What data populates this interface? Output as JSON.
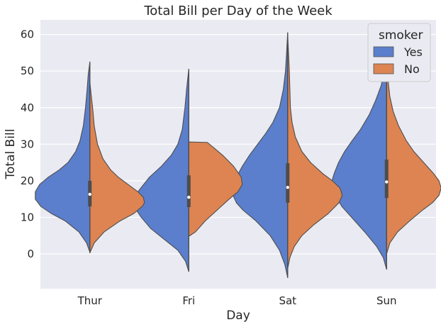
{
  "chart_data": {
    "type": "violin",
    "title": "Total Bill per Day of the Week",
    "xlabel": "Day",
    "ylabel": "Total Bill",
    "ylim": [
      -9.5,
      64
    ],
    "yticks": [
      0,
      10,
      20,
      30,
      40,
      50,
      60
    ],
    "categories": [
      "Thur",
      "Fri",
      "Sat",
      "Sun"
    ],
    "grid": true,
    "legend": {
      "title": "smoker",
      "placement": "top-right",
      "entries": [
        {
          "label": "Yes",
          "color": "#5b7fcc"
        },
        {
          "label": "No",
          "color": "#dd8452"
        }
      ]
    },
    "series": [
      {
        "name": "Yes",
        "side": "left",
        "color": "#5b7fcc",
        "groups": [
          {
            "category": "Thur",
            "quartiles": [
              13,
              16.3,
              20
            ],
            "profile": [
              [
                0.5,
                0
              ],
              [
                3,
                0.06
              ],
              [
                6,
                0.2
              ],
              [
                9,
                0.45
              ],
              [
                11,
                0.7
              ],
              [
                13,
                0.9
              ],
              [
                15,
                1
              ],
              [
                17,
                1
              ],
              [
                19,
                0.92
              ],
              [
                21,
                0.76
              ],
              [
                23,
                0.56
              ],
              [
                25,
                0.4
              ],
              [
                28,
                0.26
              ],
              [
                31,
                0.18
              ],
              [
                35,
                0.12
              ],
              [
                40,
                0.08
              ],
              [
                45,
                0.05
              ],
              [
                49,
                0.03
              ],
              [
                52.5,
                0
              ]
            ]
          },
          {
            "category": "Fri",
            "quartiles": [
              12.8,
              15.5,
              21.5
            ],
            "profile": [
              [
                -4.8,
                0
              ],
              [
                -2,
                0.06
              ],
              [
                1,
                0.2
              ],
              [
                4,
                0.45
              ],
              [
                7,
                0.7
              ],
              [
                10,
                0.87
              ],
              [
                12,
                0.96
              ],
              [
                14,
                1
              ],
              [
                16,
                0.98
              ],
              [
                18,
                0.88
              ],
              [
                21,
                0.72
              ],
              [
                24,
                0.5
              ],
              [
                27,
                0.32
              ],
              [
                30,
                0.2
              ],
              [
                34,
                0.12
              ],
              [
                40,
                0.07
              ],
              [
                45,
                0.04
              ],
              [
                50.5,
                0
              ]
            ]
          },
          {
            "category": "Sat",
            "quartiles": [
              14,
              18.2,
              24.8
            ],
            "profile": [
              [
                -6.5,
                0
              ],
              [
                -3,
                0.05
              ],
              [
                1,
                0.15
              ],
              [
                5,
                0.32
              ],
              [
                9,
                0.58
              ],
              [
                12,
                0.82
              ],
              [
                14,
                0.94
              ],
              [
                16,
                1
              ],
              [
                18,
                1
              ],
              [
                21,
                0.94
              ],
              [
                24,
                0.83
              ],
              [
                27,
                0.7
              ],
              [
                30,
                0.55
              ],
              [
                33,
                0.4
              ],
              [
                36,
                0.27
              ],
              [
                40,
                0.15
              ],
              [
                45,
                0.08
              ],
              [
                50,
                0.04
              ],
              [
                55,
                0.02
              ],
              [
                60.5,
                0
              ]
            ]
          },
          {
            "category": "Sun",
            "quartiles": [
              15.3,
              19.7,
              25.8
            ],
            "profile": [
              [
                -4.2,
                0
              ],
              [
                -1,
                0.06
              ],
              [
                2,
                0.18
              ],
              [
                6,
                0.4
              ],
              [
                10,
                0.64
              ],
              [
                13,
                0.82
              ],
              [
                16,
                0.94
              ],
              [
                18,
                1
              ],
              [
                20,
                1
              ],
              [
                22,
                0.96
              ],
              [
                25,
                0.88
              ],
              [
                28,
                0.77
              ],
              [
                31,
                0.63
              ],
              [
                34,
                0.48
              ],
              [
                38,
                0.32
              ],
              [
                42,
                0.2
              ],
              [
                46,
                0.1
              ],
              [
                50,
                0.04
              ],
              [
                54,
                0.01
              ],
              [
                57.5,
                0
              ]
            ]
          }
        ]
      },
      {
        "name": "No",
        "side": "right",
        "color": "#dd8452",
        "groups": [
          {
            "category": "Thur",
            "quartiles": [
              13,
              16.3,
              20
            ],
            "profile": [
              [
                0.3,
                0
              ],
              [
                3,
                0.08
              ],
              [
                6,
                0.26
              ],
              [
                9,
                0.55
              ],
              [
                11,
                0.8
              ],
              [
                13,
                0.96
              ],
              [
                14,
                1
              ],
              [
                15.5,
                0.98
              ],
              [
                17,
                0.88
              ],
              [
                19,
                0.7
              ],
              [
                21,
                0.52
              ],
              [
                23,
                0.38
              ],
              [
                26,
                0.24
              ],
              [
                30,
                0.14
              ],
              [
                35,
                0.08
              ],
              [
                40,
                0.05
              ],
              [
                44,
                0.02
              ],
              [
                47,
                0
              ]
            ]
          },
          {
            "category": "Fri",
            "quartiles": [
              12.8,
              15.5,
              21.5
            ],
            "profile": [
              [
                4.8,
                0
              ],
              [
                6,
                0.12
              ],
              [
                9,
                0.3
              ],
              [
                12,
                0.52
              ],
              [
                15,
                0.74
              ],
              [
                17,
                0.9
              ],
              [
                19,
                0.98
              ],
              [
                21,
                0.96
              ],
              [
                24,
                0.82
              ],
              [
                27,
                0.62
              ],
              [
                29,
                0.46
              ],
              [
                30.5,
                0.34
              ],
              [
                30.6,
                0
              ]
            ]
          },
          {
            "category": "Sat",
            "quartiles": [
              14,
              18.2,
              24.8
            ],
            "profile": [
              [
                -4,
                0
              ],
              [
                -1,
                0.04
              ],
              [
                2,
                0.12
              ],
              [
                5,
                0.26
              ],
              [
                8,
                0.48
              ],
              [
                11,
                0.74
              ],
              [
                14,
                0.94
              ],
              [
                16,
                1
              ],
              [
                18,
                0.96
              ],
              [
                20,
                0.82
              ],
              [
                22,
                0.64
              ],
              [
                25,
                0.42
              ],
              [
                28,
                0.26
              ],
              [
                32,
                0.14
              ],
              [
                36,
                0.08
              ],
              [
                40,
                0.05
              ],
              [
                45,
                0.04
              ],
              [
                50,
                0.03
              ],
              [
                55,
                0.015
              ],
              [
                60,
                0
              ]
            ]
          },
          {
            "category": "Sun",
            "quartiles": [
              15.3,
              19.7,
              25.8
            ],
            "profile": [
              [
                0,
                0
              ],
              [
                3,
                0.06
              ],
              [
                6,
                0.2
              ],
              [
                9,
                0.42
              ],
              [
                12,
                0.66
              ],
              [
                14,
                0.84
              ],
              [
                16,
                0.96
              ],
              [
                18,
                1
              ],
              [
                20,
                0.96
              ],
              [
                22,
                0.86
              ],
              [
                25,
                0.68
              ],
              [
                28,
                0.5
              ],
              [
                31,
                0.36
              ],
              [
                35,
                0.22
              ],
              [
                39,
                0.12
              ],
              [
                43,
                0.06
              ],
              [
                47,
                0.03
              ],
              [
                50,
                0
              ]
            ]
          }
        ]
      }
    ]
  }
}
